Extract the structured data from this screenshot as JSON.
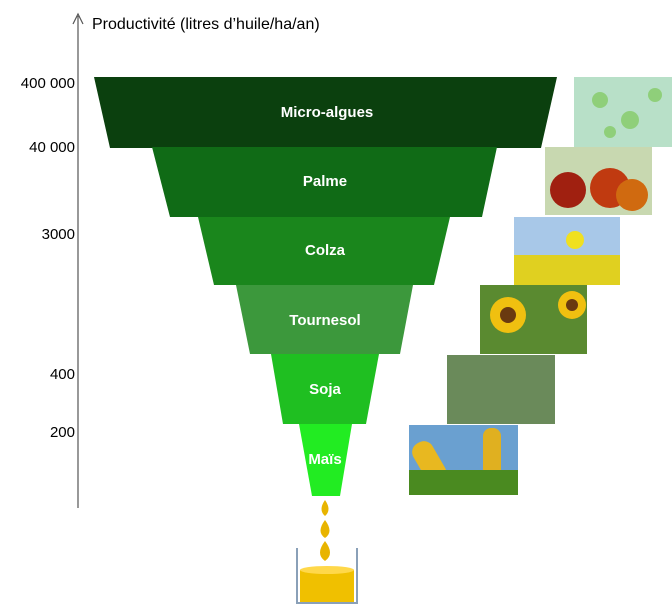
{
  "axis": {
    "label": "Productivité (litres d’huile/ha/an)",
    "ticks": [
      "400 000",
      "40 000",
      "3000",
      "400",
      "200"
    ]
  },
  "levels": [
    "Micro-algues",
    "Palme",
    "Colza",
    "Tournesol",
    "Soja",
    "Maïs"
  ]
}
